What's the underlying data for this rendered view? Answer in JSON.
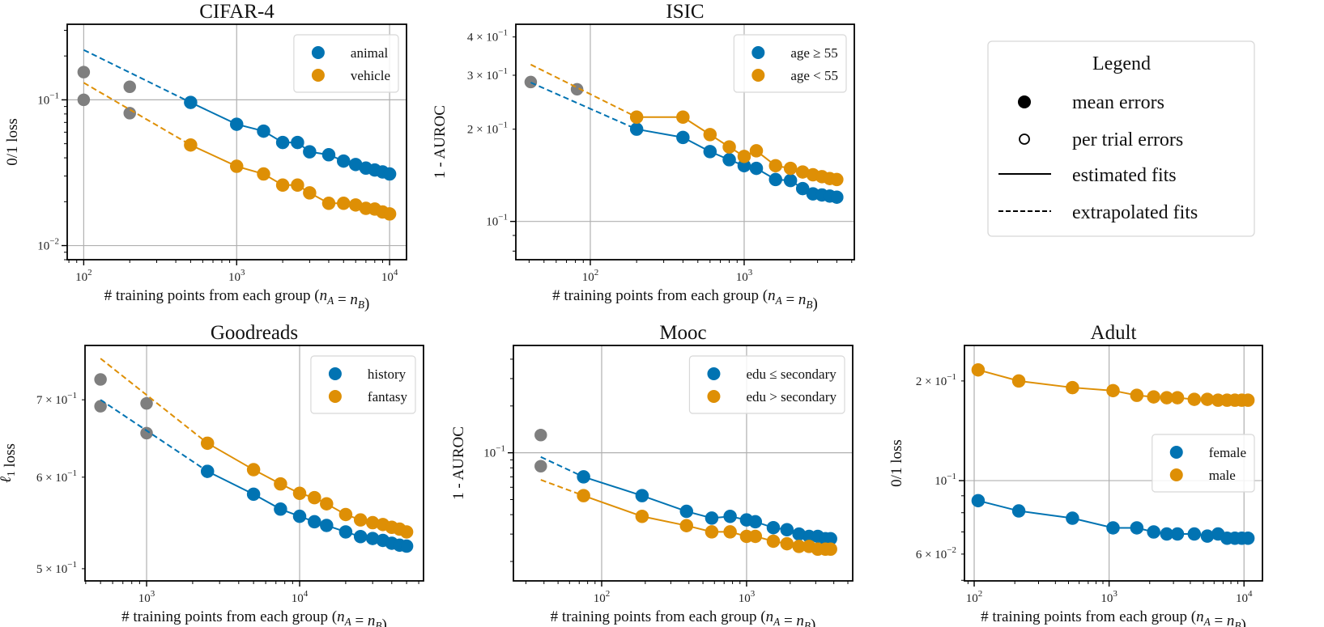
{
  "colors": {
    "group_a": "#0173b2",
    "group_b": "#de8f05",
    "excluded": "#7f7f7f",
    "grid": "#b0b0b0"
  },
  "global_legend": {
    "title": "Legend",
    "items": [
      {
        "marker": "filled-circle",
        "label": "mean errors"
      },
      {
        "marker": "open-circle",
        "label": "per trial errors"
      },
      {
        "marker": "solid-line",
        "label": "estimated fits"
      },
      {
        "marker": "dashed-line",
        "label": "extrapolated fits"
      }
    ]
  },
  "chart_data": [
    {
      "type": "scatter",
      "title": "CIFAR-4",
      "xlabel": "# training points from each group (n_A = n_B)",
      "ylabel": "0/1 loss",
      "xscale": "log",
      "yscale": "log",
      "xlim": [
        78,
        12900
      ],
      "ylim": [
        0.008,
        0.33
      ],
      "grid": true,
      "legend": "top-right",
      "xticks": [
        {
          "value": 100,
          "base": "10",
          "exp": "2"
        },
        {
          "value": 1000,
          "base": "10",
          "exp": "3"
        },
        {
          "value": 10000,
          "base": "10",
          "exp": "4"
        }
      ],
      "yticks": [
        {
          "value": 0.1,
          "prefix": "",
          "base": "10",
          "exp": "−1"
        },
        {
          "value": 0.01,
          "prefix": "",
          "base": "10",
          "exp": "−2"
        }
      ],
      "excluded_points": {
        "x": [
          100,
          100,
          200,
          200
        ],
        "mean": [
          0.155,
          0.1,
          0.123,
          0.081
        ]
      },
      "series": [
        {
          "name": "animal",
          "color": "#0173b2",
          "x": [
            500,
            1000,
            1500,
            2000,
            2500,
            3000,
            4000,
            5000,
            6000,
            7000,
            8000,
            9000,
            10000
          ],
          "mean": [
            0.096,
            0.068,
            0.061,
            0.051,
            0.051,
            0.044,
            0.042,
            0.038,
            0.036,
            0.034,
            0.033,
            0.032,
            0.031
          ],
          "extrapolated_fit_start": [
            100,
            0.22
          ]
        },
        {
          "name": "vehicle",
          "color": "#de8f05",
          "x": [
            500,
            1000,
            1500,
            2000,
            2500,
            3000,
            4000,
            5000,
            6000,
            7000,
            8000,
            9000,
            10000
          ],
          "mean": [
            0.049,
            0.035,
            0.031,
            0.026,
            0.026,
            0.023,
            0.0195,
            0.0195,
            0.019,
            0.018,
            0.0178,
            0.017,
            0.0165
          ],
          "extrapolated_fit_start": [
            100,
            0.131
          ]
        }
      ]
    },
    {
      "type": "scatter",
      "title": "ISIC",
      "xlabel": "# training points from each group (n_A = n_B)",
      "ylabel": "1 - AUROC",
      "xscale": "log",
      "yscale": "log",
      "xlim": [
        32.8,
        5200
      ],
      "ylim": [
        0.075,
        0.44
      ],
      "grid": true,
      "legend": "top-right",
      "xticks": [
        {
          "value": 100,
          "base": "10",
          "exp": "2"
        },
        {
          "value": 1000,
          "base": "10",
          "exp": "3"
        }
      ],
      "yticks": [
        {
          "value": 0.4,
          "prefix": "4 × ",
          "base": "10",
          "exp": "−1"
        },
        {
          "value": 0.3,
          "prefix": "3 × ",
          "base": "10",
          "exp": "−1"
        },
        {
          "value": 0.2,
          "prefix": "2 × ",
          "base": "10",
          "exp": "−1"
        },
        {
          "value": 0.1,
          "prefix": "",
          "base": "10",
          "exp": "−1"
        }
      ],
      "excluded_points": {
        "x": [
          41,
          82
        ],
        "mean": [
          0.285,
          0.27
        ]
      },
      "series": [
        {
          "name": "age ≥ 55",
          "color": "#0173b2",
          "x": [
            200,
            400,
            600,
            800,
            1000,
            1200,
            1600,
            2000,
            2400,
            2800,
            3200,
            3600,
            4000
          ],
          "mean": [
            0.2,
            0.188,
            0.169,
            0.159,
            0.152,
            0.149,
            0.137,
            0.136,
            0.128,
            0.123,
            0.122,
            0.121,
            0.12
          ],
          "extrapolated_fit_start": [
            41,
            0.284
          ]
        },
        {
          "name": "age < 55",
          "color": "#de8f05",
          "x": [
            200,
            400,
            600,
            800,
            1000,
            1200,
            1600,
            2000,
            2400,
            2800,
            3200,
            3600,
            4000
          ],
          "mean": [
            0.219,
            0.219,
            0.192,
            0.175,
            0.163,
            0.17,
            0.152,
            0.149,
            0.145,
            0.142,
            0.14,
            0.138,
            0.137
          ],
          "extrapolated_fit_start": [
            41,
            0.325
          ]
        }
      ]
    },
    {
      "type": "scatter",
      "title": "Goodreads",
      "xlabel": "# training points from each group (n_A = n_B)",
      "ylabel": "ℓ_1 loss",
      "xscale": "log",
      "yscale": "log",
      "xlim": [
        396,
        64500
      ],
      "ylim": [
        0.488,
        0.78
      ],
      "grid": true,
      "legend": "top-right",
      "xticks": [
        {
          "value": 1000,
          "base": "10",
          "exp": "3"
        },
        {
          "value": 10000,
          "base": "10",
          "exp": "4"
        }
      ],
      "yticks": [
        {
          "value": 0.7,
          "prefix": "7 × ",
          "base": "10",
          "exp": "−1"
        },
        {
          "value": 0.6,
          "prefix": "6 × ",
          "base": "10",
          "exp": "−1"
        },
        {
          "value": 0.5,
          "prefix": "5 × ",
          "base": "10",
          "exp": "−1"
        }
      ],
      "excluded_points": {
        "x": [
          500,
          500,
          1000,
          1000
        ],
        "mean": [
          0.729,
          0.691,
          0.695,
          0.655
        ]
      },
      "series": [
        {
          "name": "history",
          "color": "#0173b2",
          "x": [
            2500,
            5000,
            7500,
            10000,
            12500,
            15000,
            20000,
            25000,
            30000,
            35000,
            40000,
            45000,
            50000
          ],
          "mean": [
            0.607,
            0.58,
            0.563,
            0.555,
            0.549,
            0.545,
            0.538,
            0.533,
            0.531,
            0.529,
            0.526,
            0.524,
            0.523
          ],
          "extrapolated_fit_start": [
            500,
            0.7
          ]
        },
        {
          "name": "fantasy",
          "color": "#de8f05",
          "x": [
            2500,
            5000,
            7500,
            10000,
            12500,
            15000,
            20000,
            25000,
            30000,
            35000,
            40000,
            45000,
            50000
          ],
          "mean": [
            0.642,
            0.609,
            0.592,
            0.581,
            0.576,
            0.569,
            0.557,
            0.551,
            0.548,
            0.546,
            0.543,
            0.541,
            0.538
          ],
          "extrapolated_fit_start": [
            500,
            0.76
          ]
        }
      ]
    },
    {
      "type": "scatter",
      "title": "Mooc",
      "xlabel": "# training points from each group (n_A = n_B)",
      "ylabel": "1 - AUROC",
      "xscale": "log",
      "yscale": "log",
      "xlim": [
        24.6,
        5400
      ],
      "ylim": [
        0.015,
        0.49
      ],
      "grid": true,
      "legend": "top-right",
      "xticks": [
        {
          "value": 100,
          "base": "10",
          "exp": "2"
        },
        {
          "value": 1000,
          "base": "10",
          "exp": "3"
        }
      ],
      "yticks": [
        {
          "value": 0.1,
          "prefix": "",
          "base": "10",
          "exp": "−1"
        }
      ],
      "excluded_points": {
        "x": [
          38,
          38
        ],
        "mean": [
          0.13,
          0.082
        ]
      },
      "series": [
        {
          "name": "edu ≤ secondary",
          "color": "#0173b2",
          "x": [
            75,
            190,
            385,
            575,
            770,
            1000,
            1150,
            1530,
            1900,
            2300,
            2700,
            3100,
            3500,
            3800
          ],
          "mean": [
            0.07,
            0.053,
            0.042,
            0.038,
            0.039,
            0.037,
            0.036,
            0.033,
            0.032,
            0.03,
            0.029,
            0.029,
            0.028,
            0.028
          ],
          "extrapolated_fit_start": [
            38,
            0.094
          ]
        },
        {
          "name": "edu > secondary",
          "color": "#de8f05",
          "x": [
            75,
            190,
            385,
            575,
            770,
            1000,
            1150,
            1530,
            1900,
            2300,
            2700,
            3100,
            3500,
            3800
          ],
          "mean": [
            0.053,
            0.039,
            0.034,
            0.031,
            0.031,
            0.029,
            0.029,
            0.027,
            0.026,
            0.025,
            0.025,
            0.024,
            0.024,
            0.024
          ],
          "extrapolated_fit_start": [
            38,
            0.067
          ]
        }
      ]
    },
    {
      "type": "scatter",
      "title": "Adult",
      "xlabel": "# training points from each group (n_A = n_B)",
      "ylabel": "0/1 loss",
      "xscale": "log",
      "yscale": "log",
      "xlim": [
        84.7,
        13700
      ],
      "ylim": [
        0.0498,
        0.256
      ],
      "grid": true,
      "legend": "center-right",
      "xticks": [
        {
          "value": 100,
          "base": "10",
          "exp": "2"
        },
        {
          "value": 1000,
          "base": "10",
          "exp": "3"
        },
        {
          "value": 10000,
          "base": "10",
          "exp": "4"
        }
      ],
      "yticks": [
        {
          "value": 0.2,
          "prefix": "2 × ",
          "base": "10",
          "exp": "−1"
        },
        {
          "value": 0.1,
          "prefix": "",
          "base": "10",
          "exp": "−1"
        },
        {
          "value": 0.06,
          "prefix": "6 × ",
          "base": "10",
          "exp": "−2"
        }
      ],
      "series": [
        {
          "name": "female",
          "color": "#0173b2",
          "x": [
            107,
            214,
            535,
            1070,
            1605,
            2140,
            2675,
            3210,
            4280,
            5350,
            6420,
            7490,
            8560,
            9630,
            10700
          ],
          "mean": [
            0.087,
            0.081,
            0.077,
            0.072,
            0.072,
            0.07,
            0.069,
            0.069,
            0.069,
            0.068,
            0.069,
            0.067,
            0.067,
            0.067,
            0.067
          ]
        },
        {
          "name": "male",
          "color": "#de8f05",
          "x": [
            107,
            214,
            535,
            1070,
            1605,
            2140,
            2675,
            3210,
            4280,
            5350,
            6420,
            7490,
            8560,
            9630,
            10700
          ],
          "mean": [
            0.216,
            0.2,
            0.191,
            0.187,
            0.181,
            0.179,
            0.178,
            0.178,
            0.176,
            0.176,
            0.175,
            0.175,
            0.175,
            0.175,
            0.175
          ]
        }
      ]
    }
  ]
}
